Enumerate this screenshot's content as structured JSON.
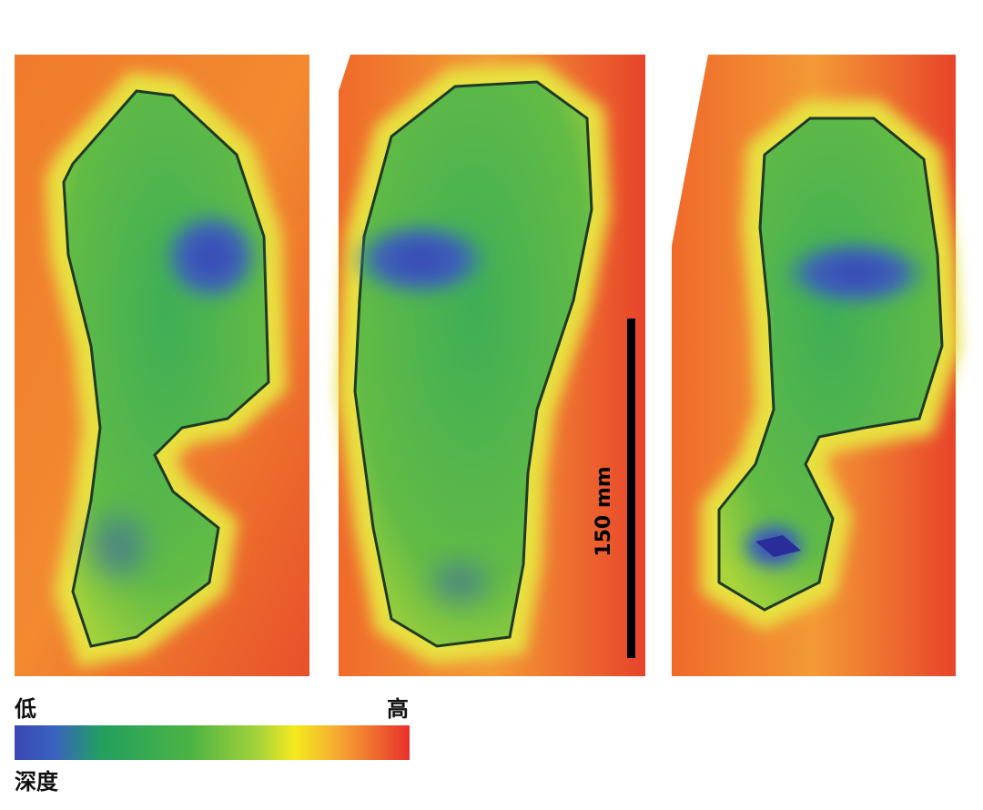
{
  "scale_bar": {
    "label": "150 mm"
  },
  "legend": {
    "low": "低",
    "high": "高",
    "title": "深度"
  }
}
